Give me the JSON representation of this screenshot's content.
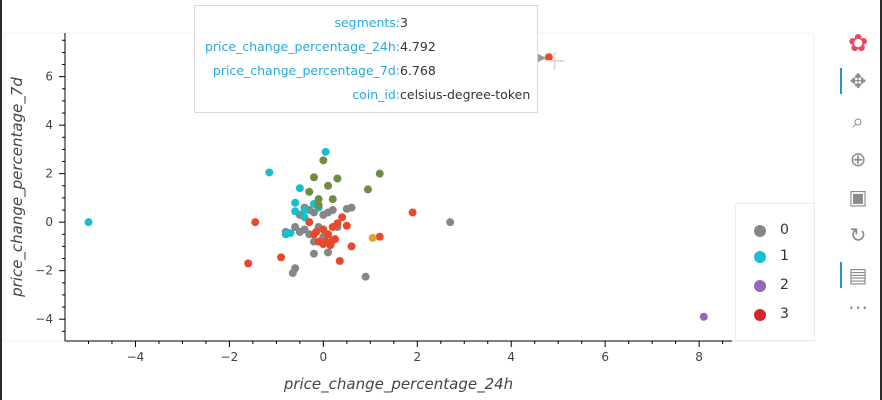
{
  "chart_data": {
    "type": "scatter",
    "xlabel": "price_change_percentage_24h",
    "ylabel": "price_change_percentage_7d",
    "xlim": [
      -5.5,
      8.7
    ],
    "ylim": [
      -4.9,
      7.8
    ],
    "xticks": [
      -4,
      -2,
      0,
      2,
      4,
      6,
      8
    ],
    "yticks": [
      -4,
      -2,
      0,
      2,
      4,
      6
    ],
    "xtick_labels": [
      "−4",
      "−2",
      "0",
      "2",
      "4",
      "6",
      "8"
    ],
    "ytick_labels": [
      "−4",
      "−2",
      "0",
      "2",
      "4",
      "6"
    ],
    "grid": false,
    "legend_position": "bottom-right",
    "series": [
      {
        "name": "0",
        "color": "#868686",
        "points": [
          [
            -0.4,
            0.6
          ],
          [
            -0.5,
            0.3
          ],
          [
            -0.3,
            0.5
          ],
          [
            -0.2,
            0.4
          ],
          [
            0.1,
            0.4
          ],
          [
            0.2,
            0.5
          ],
          [
            0.5,
            0.55
          ],
          [
            0.6,
            0.6
          ],
          [
            -0.6,
            -0.2
          ],
          [
            -0.4,
            -0.3
          ],
          [
            -0.1,
            -0.2
          ],
          [
            0.0,
            0.3
          ],
          [
            -0.3,
            -0.5
          ],
          [
            -0.5,
            -0.4
          ],
          [
            -0.2,
            -0.8
          ],
          [
            0.0,
            -0.6
          ],
          [
            -0.6,
            -1.9
          ],
          [
            -0.65,
            -2.1
          ],
          [
            -0.2,
            -1.3
          ],
          [
            0.1,
            -1.25
          ],
          [
            0.9,
            -2.25
          ],
          [
            2.7,
            0.0
          ],
          [
            -0.8,
            -0.4
          ],
          [
            0.3,
            -0.2
          ]
        ]
      },
      {
        "name": "1",
        "color": "#17becf",
        "points": [
          [
            0.05,
            2.9
          ],
          [
            -1.15,
            2.05
          ],
          [
            -0.5,
            1.4
          ],
          [
            -0.6,
            0.8
          ],
          [
            -0.6,
            0.45
          ],
          [
            -0.4,
            0.5
          ],
          [
            -0.4,
            0.2
          ],
          [
            -0.2,
            0.75
          ],
          [
            -0.1,
            0.6
          ],
          [
            -0.7,
            -0.45
          ],
          [
            -0.8,
            -0.5
          ],
          [
            -5.0,
            0.0
          ]
        ]
      },
      {
        "name": "2",
        "color": "#9467bd",
        "points": [
          [
            8.1,
            -3.9
          ]
        ]
      },
      {
        "name": "3",
        "color": "#e8492c",
        "points": [
          [
            4.8,
            6.8
          ],
          [
            1.9,
            0.4
          ],
          [
            1.2,
            -0.6
          ],
          [
            -1.45,
            0.0
          ],
          [
            -1.6,
            -1.7
          ],
          [
            -0.9,
            -1.45
          ],
          [
            0.6,
            -1.0
          ],
          [
            0.35,
            -1.6
          ],
          [
            0.0,
            -0.3
          ],
          [
            0.1,
            -0.5
          ],
          [
            0.2,
            -0.75
          ],
          [
            -0.3,
            0.0
          ],
          [
            -0.1,
            -0.8
          ],
          [
            0.0,
            -0.9
          ],
          [
            0.15,
            -0.95
          ],
          [
            0.25,
            -0.7
          ],
          [
            -0.2,
            -0.5
          ],
          [
            0.4,
            0.2
          ],
          [
            0.5,
            -0.15
          ],
          [
            0.2,
            -0.2
          ],
          [
            0.05,
            -0.8
          ],
          [
            -0.15,
            -0.4
          ],
          [
            0.3,
            -0.05
          ]
        ]
      },
      {
        "name": "",
        "color": "#708c44",
        "points": [
          [
            0.0,
            2.55
          ],
          [
            -0.2,
            1.85
          ],
          [
            0.3,
            1.8
          ],
          [
            1.2,
            2.0
          ],
          [
            0.95,
            1.35
          ],
          [
            0.1,
            1.5
          ],
          [
            -0.3,
            1.25
          ],
          [
            -0.1,
            0.95
          ],
          [
            0.2,
            0.95
          ],
          [
            -0.1,
            0.7
          ]
        ]
      },
      {
        "name": "",
        "color": "#e8a02c",
        "points": [
          [
            1.05,
            -0.65
          ]
        ]
      }
    ],
    "tooltip": {
      "rows": [
        {
          "key": "segments:",
          "value": "3"
        },
        {
          "key": "price_change_percentage_24h:",
          "value": "4.792"
        },
        {
          "key": "price_change_percentage_7d:",
          "value": "6.768"
        },
        {
          "key": "coin_id:",
          "value": "celsius-degree-token"
        }
      ]
    },
    "legend": [
      {
        "label": "0",
        "color": "#868686"
      },
      {
        "label": "1",
        "color": "#17becf"
      },
      {
        "label": "2",
        "color": "#9467bd"
      },
      {
        "label": "3",
        "color": "#d62728"
      }
    ]
  },
  "toolbar": {
    "tools": [
      {
        "icon": "bokeh-logo-icon",
        "glyph": "✿",
        "active": false
      },
      {
        "icon": "pan-icon",
        "glyph": "✥",
        "active": true
      },
      {
        "icon": "box-zoom-icon",
        "glyph": "⌕",
        "active": false
      },
      {
        "icon": "wheel-zoom-icon",
        "glyph": "⊕",
        "active": false
      },
      {
        "icon": "save-icon",
        "glyph": "▣",
        "active": false
      },
      {
        "icon": "reset-icon",
        "glyph": "↻",
        "active": false
      },
      {
        "icon": "hover-icon",
        "glyph": "▤",
        "active": true
      },
      {
        "icon": "more-icon",
        "glyph": "⋯",
        "active": false
      }
    ]
  }
}
